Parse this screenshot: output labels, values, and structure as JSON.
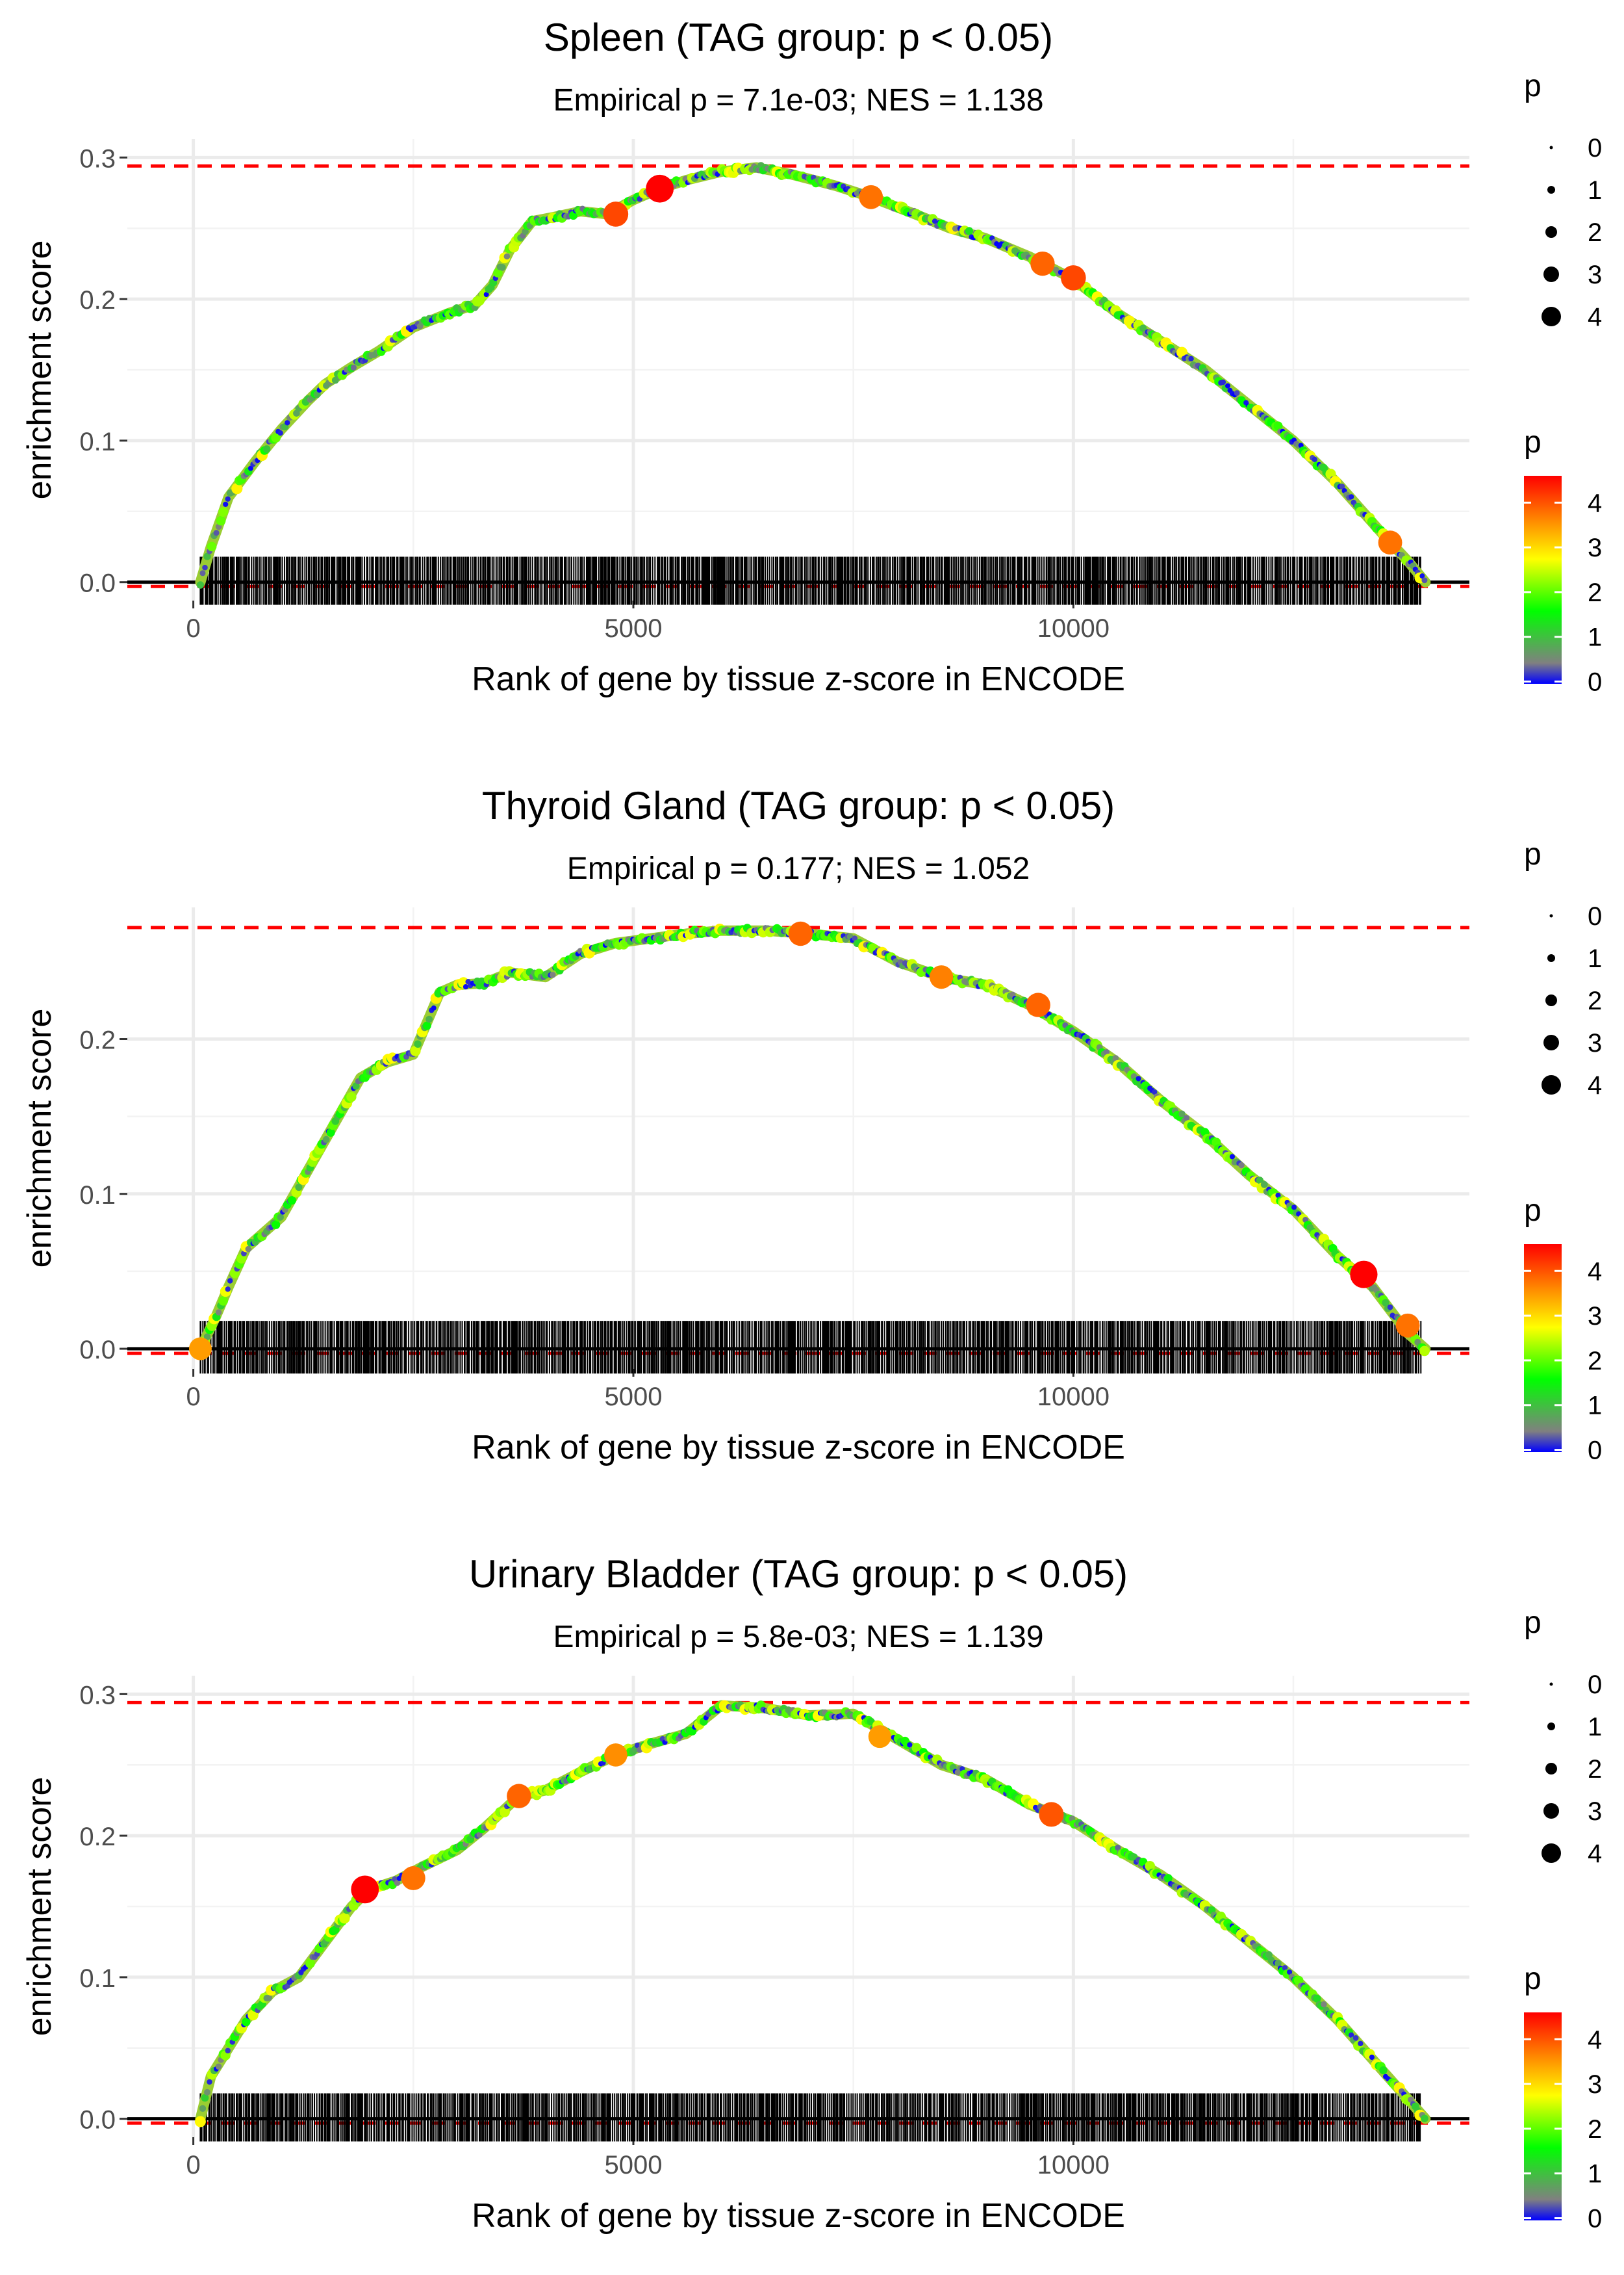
{
  "chart_data": [
    {
      "type": "line",
      "title": "Spleen (TAG group: p < 0.05)",
      "subtitle": "Empirical p = 7.1e-03; NES = 1.138",
      "xlabel": "Rank of gene by tissue z-score in ENCODE",
      "ylabel": "enrichment score",
      "xlim": [
        -750,
        14500
      ],
      "ylim": [
        -0.013,
        0.313
      ],
      "x_ticks": [
        0,
        5000,
        10000
      ],
      "x_tick_labels": [
        "0",
        "5000",
        "10000"
      ],
      "y_ticks": [
        0.0,
        0.1,
        0.2,
        0.3
      ],
      "y_tick_labels": [
        "0.0",
        "0.1",
        "0.2",
        "0.3"
      ],
      "max_es": 0.294,
      "min_es": -0.003,
      "curve": {
        "x": [
          80,
          200,
          400,
          700,
          1000,
          1300,
          1500,
          1800,
          2100,
          2500,
          2900,
          3200,
          3400,
          3600,
          3850,
          4100,
          4400,
          4700,
          5000,
          5300,
          5600,
          6000,
          6400,
          6800,
          7300,
          7700,
          8200,
          8600,
          9000,
          9500,
          10000,
          10500,
          11000,
          11500,
          12000,
          12500,
          13000,
          13500,
          13800,
          14000
        ],
        "y": [
          0.0,
          0.025,
          0.06,
          0.085,
          0.108,
          0.128,
          0.14,
          0.152,
          0.163,
          0.18,
          0.19,
          0.196,
          0.21,
          0.235,
          0.255,
          0.258,
          0.262,
          0.26,
          0.27,
          0.278,
          0.284,
          0.29,
          0.293,
          0.288,
          0.28,
          0.272,
          0.26,
          0.25,
          0.243,
          0.23,
          0.214,
          0.19,
          0.17,
          0.15,
          0.125,
          0.1,
          0.07,
          0.035,
          0.015,
          0.0
        ]
      },
      "highlight_points": [
        {
          "x": 5300,
          "y": 0.278,
          "p": 4.8
        },
        {
          "x": 4800,
          "y": 0.26,
          "p": 4.1
        },
        {
          "x": 7700,
          "y": 0.272,
          "p": 3.8
        },
        {
          "x": 9650,
          "y": 0.225,
          "p": 3.9
        },
        {
          "x": 10000,
          "y": 0.215,
          "p": 4.1
        },
        {
          "x": 13600,
          "y": 0.028,
          "p": 3.8
        }
      ],
      "legend_size": {
        "title": "p",
        "labels": [
          "0",
          "1",
          "2",
          "3",
          "4"
        ]
      },
      "legend_color": {
        "title": "p",
        "labels": [
          "4",
          "3",
          "2",
          "1",
          "0"
        ],
        "colors": [
          "#ff0000",
          "#ff8000",
          "#ffff00",
          "#00ff00",
          "#808080",
          "#0000ff"
        ]
      }
    },
    {
      "type": "line",
      "title": "Thyroid Gland (TAG group: p < 0.05)",
      "subtitle": "Empirical p = 0.177; NES = 1.052",
      "xlabel": "Rank of gene by tissue z-score in ENCODE",
      "ylabel": "enrichment score",
      "xlim": [
        -750,
        14500
      ],
      "ylim": [
        -0.013,
        0.285
      ],
      "x_ticks": [
        0,
        5000,
        10000
      ],
      "x_tick_labels": [
        "0",
        "5000",
        "10000"
      ],
      "y_ticks": [
        0.0,
        0.1,
        0.2
      ],
      "y_tick_labels": [
        "0.0",
        "0.1",
        "0.2"
      ],
      "max_es": 0.272,
      "min_es": -0.003,
      "curve": {
        "x": [
          80,
          250,
          400,
          600,
          800,
          1000,
          1300,
          1600,
          1900,
          2200,
          2500,
          2800,
          3000,
          3300,
          3600,
          4000,
          4400,
          4800,
          5200,
          5600,
          6000,
          6500,
          7000,
          7500,
          8000,
          8500,
          9000,
          9500,
          10000,
          10500,
          11000,
          11500,
          12000,
          12500,
          13000,
          13400,
          13800,
          14000
        ],
        "y": [
          0.0,
          0.02,
          0.04,
          0.065,
          0.075,
          0.085,
          0.115,
          0.145,
          0.175,
          0.185,
          0.19,
          0.23,
          0.235,
          0.236,
          0.243,
          0.24,
          0.255,
          0.262,
          0.265,
          0.268,
          0.27,
          0.27,
          0.268,
          0.265,
          0.25,
          0.24,
          0.235,
          0.222,
          0.205,
          0.185,
          0.16,
          0.138,
          0.112,
          0.09,
          0.06,
          0.04,
          0.01,
          0.0
        ]
      },
      "highlight_points": [
        {
          "x": 6900,
          "y": 0.268,
          "p": 3.9
        },
        {
          "x": 8500,
          "y": 0.24,
          "p": 3.7
        },
        {
          "x": 9600,
          "y": 0.222,
          "p": 3.9
        },
        {
          "x": 13300,
          "y": 0.048,
          "p": 4.7
        },
        {
          "x": 13800,
          "y": 0.015,
          "p": 3.8
        },
        {
          "x": 80,
          "y": 0.0,
          "p": 3.5
        }
      ],
      "legend_size": {
        "title": "p",
        "labels": [
          "0",
          "1",
          "2",
          "3",
          "4"
        ]
      },
      "legend_color": {
        "title": "p",
        "labels": [
          "4",
          "3",
          "2",
          "1",
          "0"
        ],
        "colors": [
          "#ff0000",
          "#ff8000",
          "#ffff00",
          "#00ff00",
          "#808080",
          "#0000ff"
        ]
      }
    },
    {
      "type": "line",
      "title": "Urinary Bladder (TAG group: p < 0.05)",
      "subtitle": "Empirical p = 5.8e-03; NES = 1.139",
      "xlabel": "Rank of gene by tissue z-score in ENCODE",
      "ylabel": "enrichment score",
      "xlim": [
        -750,
        14500
      ],
      "ylim": [
        -0.013,
        0.313
      ],
      "x_ticks": [
        0,
        5000,
        10000
      ],
      "x_tick_labels": [
        "0",
        "5000",
        "10000"
      ],
      "y_ticks": [
        0.0,
        0.1,
        0.2,
        0.3
      ],
      "y_tick_labels": [
        "0.0",
        "0.1",
        "0.2",
        "0.3"
      ],
      "max_es": 0.294,
      "min_es": -0.003,
      "curve": {
        "x": [
          80,
          200,
          400,
          600,
          900,
          1200,
          1500,
          1800,
          2000,
          2300,
          2600,
          3000,
          3300,
          3700,
          4000,
          4400,
          4800,
          5200,
          5600,
          6000,
          6500,
          7000,
          7500,
          8000,
          8500,
          9000,
          9500,
          10000,
          10500,
          11000,
          11500,
          12000,
          12500,
          13000,
          13500,
          14000
        ],
        "y": [
          0.0,
          0.03,
          0.05,
          0.07,
          0.09,
          0.1,
          0.125,
          0.15,
          0.162,
          0.168,
          0.178,
          0.19,
          0.205,
          0.228,
          0.232,
          0.245,
          0.257,
          0.265,
          0.272,
          0.292,
          0.29,
          0.285,
          0.286,
          0.268,
          0.25,
          0.24,
          0.222,
          0.21,
          0.19,
          0.172,
          0.15,
          0.125,
          0.1,
          0.07,
          0.035,
          0.0
        ]
      },
      "highlight_points": [
        {
          "x": 1950,
          "y": 0.162,
          "p": 4.8
        },
        {
          "x": 2500,
          "y": 0.17,
          "p": 3.8
        },
        {
          "x": 3700,
          "y": 0.228,
          "p": 3.9
        },
        {
          "x": 4800,
          "y": 0.257,
          "p": 3.6
        },
        {
          "x": 7800,
          "y": 0.27,
          "p": 3.5
        },
        {
          "x": 9750,
          "y": 0.215,
          "p": 4.0
        }
      ],
      "legend_size": {
        "title": "p",
        "labels": [
          "0",
          "1",
          "2",
          "3",
          "4"
        ]
      },
      "legend_color": {
        "title": "p",
        "labels": [
          "4",
          "3",
          "2",
          "1",
          "0"
        ],
        "colors": [
          "#ff0000",
          "#ff8000",
          "#ffff00",
          "#00ff00",
          "#808080",
          "#0000ff"
        ]
      }
    }
  ]
}
